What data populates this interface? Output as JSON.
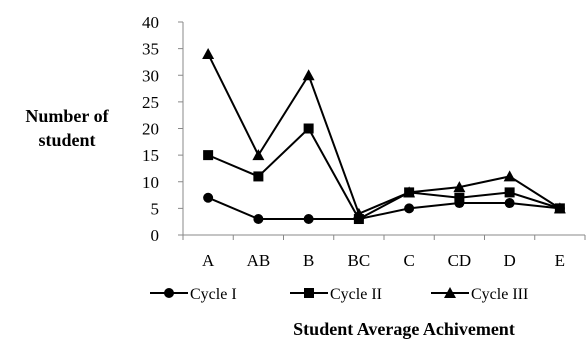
{
  "chart_data": {
    "type": "line",
    "categories": [
      "A",
      "AB",
      "B",
      "BC",
      "C",
      "CD",
      "D",
      "E"
    ],
    "series": [
      {
        "name": "Cycle I",
        "marker": "circle",
        "values": [
          7,
          3,
          3,
          3,
          5,
          6,
          6,
          5
        ]
      },
      {
        "name": "Cycle II",
        "marker": "square",
        "values": [
          15,
          11,
          20,
          3,
          8,
          7,
          8,
          5
        ]
      },
      {
        "name": "Cycle III",
        "marker": "triangle",
        "values": [
          34,
          15,
          30,
          4,
          8,
          9,
          11,
          5
        ]
      }
    ],
    "ylabel_lines": [
      "Number of",
      "student"
    ],
    "xlabel": "Student Average Achivement",
    "ylim": [
      0,
      40
    ],
    "yticks": [
      0,
      5,
      10,
      15,
      20,
      25,
      30,
      35,
      40
    ],
    "grid": false,
    "legend_position": "bottom",
    "line_color": "#000000"
  }
}
